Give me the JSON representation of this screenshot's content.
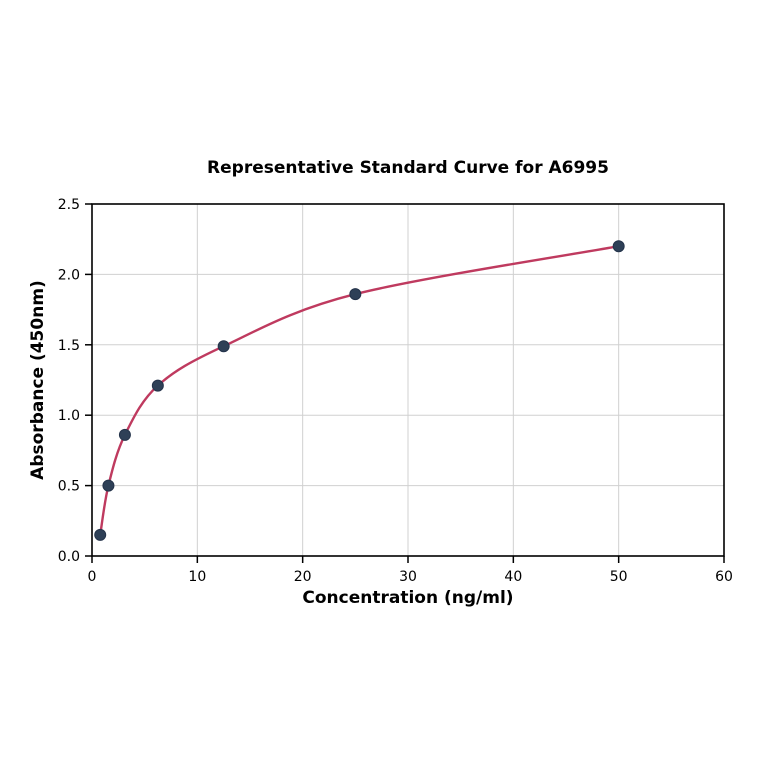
{
  "chart_data": {
    "type": "scatter",
    "title": "Representative Standard Curve for A6995",
    "xlabel": "Concentration (ng/ml)",
    "ylabel": "Absorbance (450nm)",
    "xlim": [
      0,
      60
    ],
    "ylim": [
      0,
      2.5
    ],
    "xticks": [
      0,
      10,
      20,
      30,
      40,
      50,
      60
    ],
    "xtick_labels": [
      "0",
      "10",
      "20",
      "30",
      "40",
      "50",
      "60"
    ],
    "yticks": [
      0,
      0.5,
      1.0,
      1.5,
      2.0,
      2.5
    ],
    "ytick_labels": [
      "0.0",
      "0.5",
      "1.0",
      "1.5",
      "2.0",
      "2.5"
    ],
    "grid": true,
    "legend": "none",
    "points": {
      "x": [
        0.78,
        1.56,
        3.125,
        6.25,
        12.5,
        25,
        50
      ],
      "y": [
        0.15,
        0.5,
        0.86,
        1.21,
        1.49,
        1.86,
        2.2
      ]
    },
    "curve_color": "#bf3a5f",
    "marker_color": "#2e4057",
    "marker_edge_color": "#24334a",
    "grid_color": "#d0d0d0",
    "axis_color": "#000000"
  }
}
